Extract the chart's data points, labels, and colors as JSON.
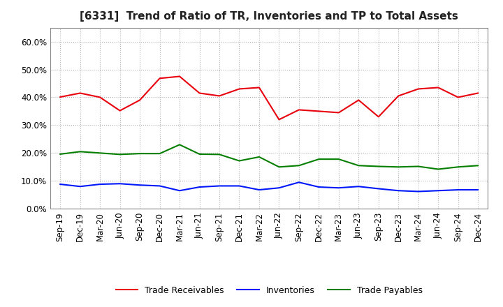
{
  "title": "[6331]  Trend of Ratio of TR, Inventories and TP to Total Assets",
  "labels": [
    "Sep-19",
    "Dec-19",
    "Mar-20",
    "Jun-20",
    "Sep-20",
    "Dec-20",
    "Mar-21",
    "Jun-21",
    "Sep-21",
    "Dec-21",
    "Mar-22",
    "Jun-22",
    "Sep-22",
    "Dec-22",
    "Mar-23",
    "Jun-23",
    "Sep-23",
    "Dec-23",
    "Mar-24",
    "Jun-24",
    "Sep-24",
    "Dec-24"
  ],
  "trade_receivables": [
    0.401,
    0.415,
    0.4,
    0.352,
    0.39,
    0.468,
    0.475,
    0.415,
    0.405,
    0.43,
    0.435,
    0.32,
    0.355,
    0.35,
    0.345,
    0.39,
    0.33,
    0.405,
    0.43,
    0.435,
    0.4,
    0.415
  ],
  "inventories": [
    0.088,
    0.08,
    0.088,
    0.09,
    0.085,
    0.082,
    0.065,
    0.078,
    0.082,
    0.082,
    0.068,
    0.075,
    0.095,
    0.078,
    0.075,
    0.08,
    0.072,
    0.065,
    0.062,
    0.065,
    0.068,
    0.068
  ],
  "trade_payables": [
    0.196,
    0.205,
    0.2,
    0.195,
    0.198,
    0.198,
    0.23,
    0.196,
    0.195,
    0.172,
    0.186,
    0.15,
    0.155,
    0.178,
    0.178,
    0.155,
    0.152,
    0.15,
    0.152,
    0.142,
    0.15,
    0.155
  ],
  "trade_receivables_color": "#e8000d",
  "inventories_color": "#0018f9",
  "trade_payables_color": "#057f00",
  "ylim": [
    0.0,
    0.65
  ],
  "yticks": [
    0.0,
    0.1,
    0.2,
    0.3,
    0.4,
    0.5,
    0.6
  ],
  "background_color": "#ffffff",
  "grid_color": "#b0b0b0",
  "legend_labels": [
    "Trade Receivables",
    "Inventories",
    "Trade Payables"
  ],
  "title_fontsize": 11,
  "tick_fontsize": 8.5,
  "legend_fontsize": 9
}
